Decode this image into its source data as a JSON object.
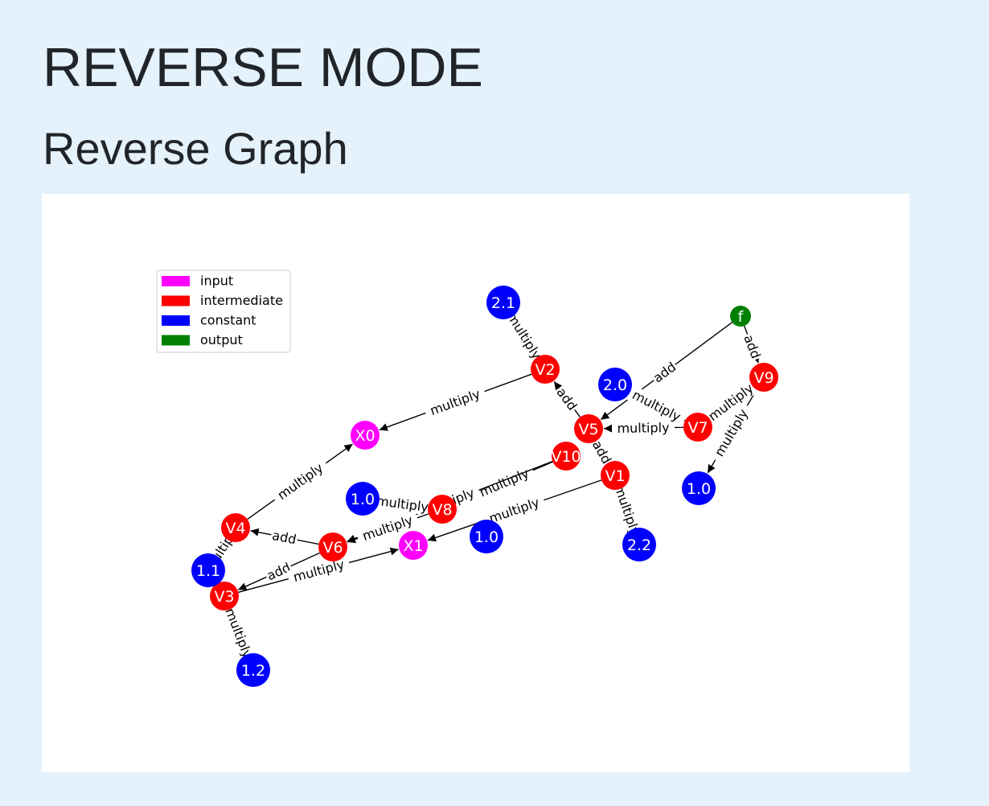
{
  "page": {
    "title": "REVERSE MODE",
    "subtitle": "Reverse Graph"
  },
  "legend": [
    {
      "label": "input",
      "color": "#ff00ff"
    },
    {
      "label": "intermediate",
      "color": "#ff0000"
    },
    {
      "label": "constant",
      "color": "#0000ff"
    },
    {
      "label": "output",
      "color": "#008000"
    }
  ],
  "nodes": [
    {
      "id": "f",
      "label": "f",
      "kind": "output"
    },
    {
      "id": "V9",
      "label": "V9",
      "kind": "intermediate"
    },
    {
      "id": "V7",
      "label": "V7",
      "kind": "intermediate"
    },
    {
      "id": "V5",
      "label": "V5",
      "kind": "intermediate"
    },
    {
      "id": "V2",
      "label": "V2",
      "kind": "intermediate"
    },
    {
      "id": "V10",
      "label": "V10",
      "kind": "intermediate"
    },
    {
      "id": "V1",
      "label": "V1",
      "kind": "intermediate"
    },
    {
      "id": "V8",
      "label": "V8",
      "kind": "intermediate"
    },
    {
      "id": "V6",
      "label": "V6",
      "kind": "intermediate"
    },
    {
      "id": "V4",
      "label": "V4",
      "kind": "intermediate"
    },
    {
      "id": "V3",
      "label": "V3",
      "kind": "intermediate"
    },
    {
      "id": "X0",
      "label": "X0",
      "kind": "input"
    },
    {
      "id": "X1",
      "label": "X1",
      "kind": "input"
    },
    {
      "id": "c21",
      "label": "2.1",
      "kind": "constant"
    },
    {
      "id": "c20",
      "label": "2.0",
      "kind": "constant"
    },
    {
      "id": "c10a",
      "label": "1.0",
      "kind": "constant"
    },
    {
      "id": "c10b",
      "label": "1.0",
      "kind": "constant"
    },
    {
      "id": "c10c",
      "label": "1.0",
      "kind": "constant"
    },
    {
      "id": "c22",
      "label": "2.2",
      "kind": "constant"
    },
    {
      "id": "c11",
      "label": "1.1",
      "kind": "constant"
    },
    {
      "id": "c12",
      "label": "1.2",
      "kind": "constant"
    }
  ],
  "edges": [
    {
      "from": "f",
      "to": "V5",
      "label": "add"
    },
    {
      "from": "f",
      "to": "V9",
      "label": "add"
    },
    {
      "from": "V9",
      "to": "c10c",
      "label": "multiply"
    },
    {
      "from": "V9",
      "to": "V7",
      "label": "multiply"
    },
    {
      "from": "V7",
      "to": "V5",
      "label": "multiply"
    },
    {
      "from": "V7",
      "to": "c20",
      "label": "multiply"
    },
    {
      "from": "V5",
      "to": "V2",
      "label": "add"
    },
    {
      "from": "V5",
      "to": "V1",
      "label": "add"
    },
    {
      "from": "V2",
      "to": "X0",
      "label": "multiply"
    },
    {
      "from": "V2",
      "to": "c21",
      "label": "multiply"
    },
    {
      "from": "V1",
      "to": "X1",
      "label": "multiply"
    },
    {
      "from": "V1",
      "to": "c22",
      "label": "multiply"
    },
    {
      "from": "V10",
      "to": "V8",
      "label": "multiply"
    },
    {
      "from": "V10",
      "to": "V6",
      "label": "multiply"
    },
    {
      "from": "V8",
      "to": "c10a",
      "label": "multiply"
    },
    {
      "from": "V8",
      "to": "V6",
      "label": "multiply"
    },
    {
      "from": "V6",
      "to": "V4",
      "label": "add"
    },
    {
      "from": "V6",
      "to": "V3",
      "label": "add"
    },
    {
      "from": "V4",
      "to": "X0",
      "label": "multiply"
    },
    {
      "from": "V4",
      "to": "c11",
      "label": "multiply"
    },
    {
      "from": "V3",
      "to": "X1",
      "label": "multiply"
    },
    {
      "from": "V3",
      "to": "c12",
      "label": "multiply"
    }
  ]
}
